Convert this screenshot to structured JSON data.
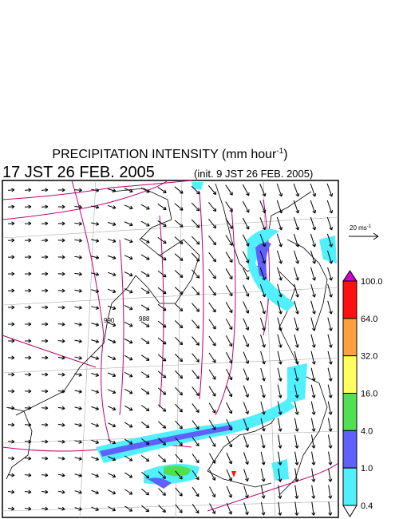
{
  "header": {
    "title": "PRECIPITATION INTENSITY (mm hour",
    "title_sup": "-1",
    "title_end": ")",
    "valid_time": "17 JST 26 FEB. 2005",
    "init_time": "(init. 9 JST 26 FEB. 2005)"
  },
  "reference_vector": {
    "label": "20 ms",
    "sup": "-1"
  },
  "colorbar": {
    "labels": [
      "100.0",
      "64.0",
      "32.0",
      "16.0",
      "4.0",
      "1.0",
      "0.4"
    ],
    "colors": [
      "#d000d0",
      "#ff1010",
      "#ffa040",
      "#ffff60",
      "#50e050",
      "#6060ff",
      "#50f0ff",
      "#ffffff"
    ]
  },
  "isobar_labels": [
    "990",
    "988"
  ]
}
